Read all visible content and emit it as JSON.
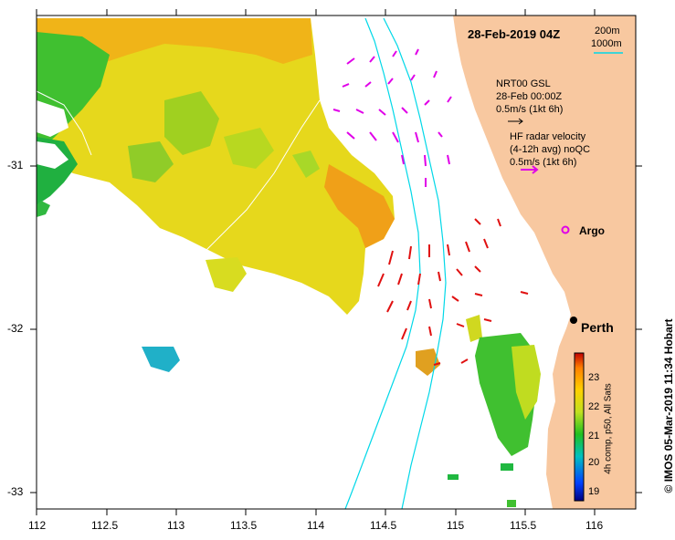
{
  "title": "28-Feb-2019 04Z",
  "depth_contours": [
    "200m",
    "1000m"
  ],
  "nrt_legend": {
    "line1": "NRT00 GSL",
    "line2": "28-Feb 00:00Z",
    "line3": "0.5m/s (1kt 6h)"
  },
  "hf_legend": {
    "line1": "HF radar velocity",
    "line2": "(4-12h avg) noQC",
    "line3": "0.5m/s (1kt 6h)"
  },
  "argo_label": "Argo",
  "city_label": "Perth",
  "credit": "© IMOS 05-Mar-2019 11:34 Hobart",
  "colorbar": {
    "label": "4h comp, p50, All Sats",
    "ticks": [
      "19",
      "20",
      "21",
      "22",
      "23"
    ]
  },
  "x_ticks": [
    "112",
    "112.5",
    "113",
    "113.5",
    "114",
    "114.5",
    "115",
    "115.5",
    "116"
  ],
  "y_ticks": [
    "-31",
    "-32",
    "-33"
  ],
  "colors": {
    "land": "#f8c8a0",
    "contour": "#00d8e8",
    "hf_arrow": "#e000e8",
    "nrt_arrow": "#e01010",
    "argo": "#e000e8"
  }
}
